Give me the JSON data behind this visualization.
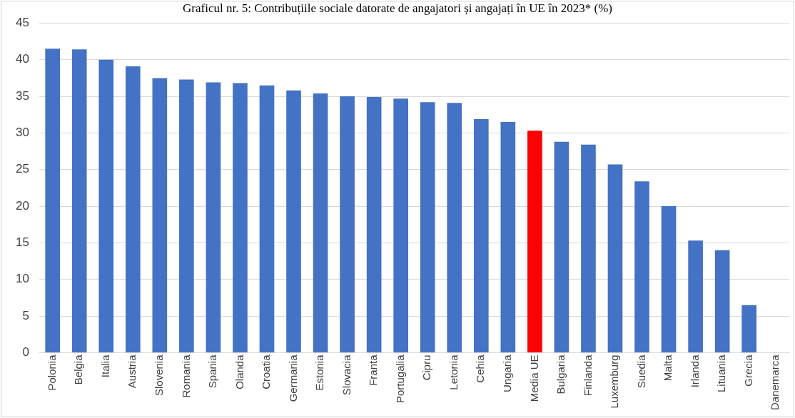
{
  "chart_data": {
    "type": "bar",
    "title": "Graficul nr. 5: Contribuțiile sociale datorate de angajatori și angajați în UE în 2023* (%)",
    "categories": [
      "Polonia",
      "Belgia",
      "Italia",
      "Austria",
      "Slovenia",
      "Romania",
      "Spania",
      "Olanda",
      "Croatia",
      "Germania",
      "Estonia",
      "Slovacia",
      "Franta",
      "Portugalia",
      "Cipru",
      "Letonia",
      "Cehia",
      "Ungaria",
      "Media UE",
      "Bulgaria",
      "Finlanda",
      "Luxemburg",
      "Suedia",
      "Malta",
      "Irlanda",
      "Lituania",
      "Grecia",
      "Danemarca"
    ],
    "values": [
      41.5,
      41.4,
      40.0,
      39.1,
      37.5,
      37.3,
      36.9,
      36.8,
      36.5,
      35.8,
      35.4,
      35.0,
      34.9,
      34.7,
      34.2,
      34.1,
      31.9,
      31.5,
      30.3,
      28.8,
      28.4,
      25.7,
      23.4,
      20.0,
      15.3,
      14.0,
      6.5,
      null
    ],
    "colors": [
      "#4472c4",
      "#4472c4",
      "#4472c4",
      "#4472c4",
      "#4472c4",
      "#4472c4",
      "#4472c4",
      "#4472c4",
      "#4472c4",
      "#4472c4",
      "#4472c4",
      "#4472c4",
      "#4472c4",
      "#4472c4",
      "#4472c4",
      "#4472c4",
      "#4472c4",
      "#4472c4",
      "#ff0000",
      "#4472c4",
      "#4472c4",
      "#4472c4",
      "#4472c4",
      "#4472c4",
      "#4472c4",
      "#4472c4",
      "#4472c4",
      "#4472c4"
    ],
    "ylim": [
      0,
      45
    ],
    "yticks": [
      0,
      5,
      10,
      15,
      20,
      25,
      30,
      35,
      40,
      45
    ],
    "grid": "y",
    "legend": false
  }
}
